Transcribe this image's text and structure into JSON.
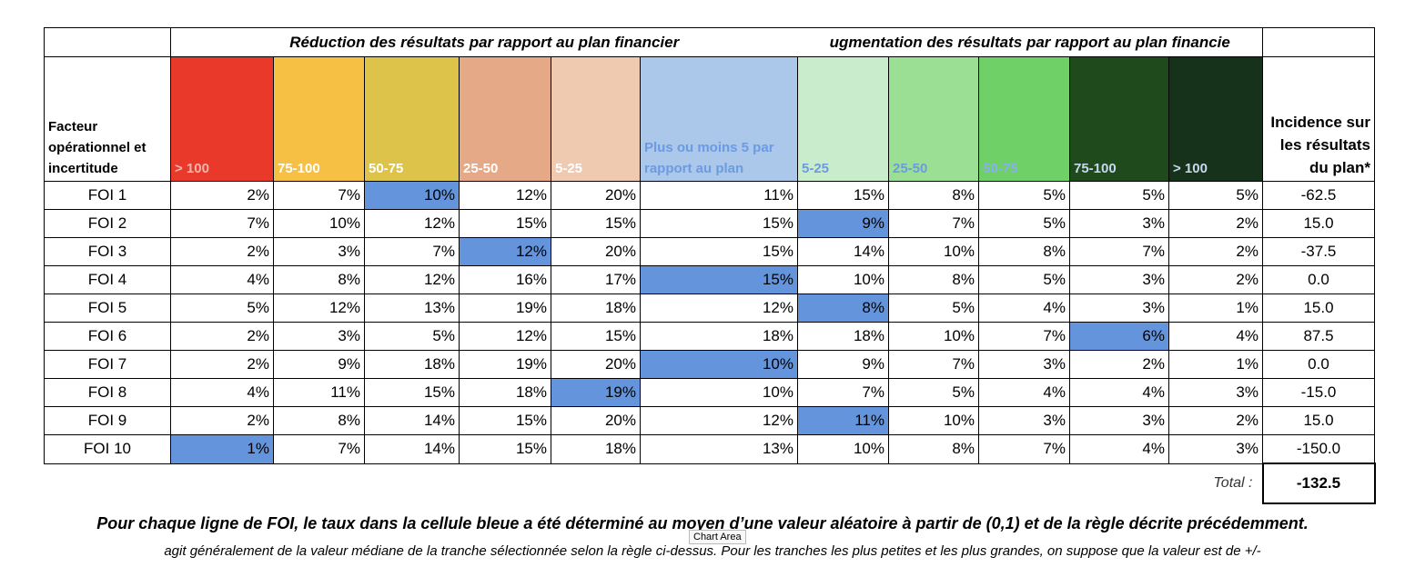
{
  "group_headers": [
    {
      "text": "Réduction des résultats par rapport au plan financier",
      "span": 6
    },
    {
      "text": "ugmentation des résultats par rapport au plan financie",
      "span": 5
    }
  ],
  "row_header_label": "Facteur opérationnel et incertitude",
  "columns": [
    {
      "label": "> 100",
      "bg": "#e8392a",
      "fg": "#f7b4ae"
    },
    {
      "label": "75-100",
      "bg": "#f5c043",
      "fg": "#ffffff"
    },
    {
      "label": "50-75",
      "bg": "#ddc349",
      "fg": "#ffffff"
    },
    {
      "label": "25-50",
      "bg": "#e6a987",
      "fg": "#ffffff"
    },
    {
      "label": "5-25",
      "bg": "#efc9b0",
      "fg": "#ffffff"
    },
    {
      "label": "Plus ou moins 5 par rapport au plan",
      "bg": "#abc7e9",
      "fg": "#6b9be0"
    },
    {
      "label": "5-25",
      "bg": "#c9edcc",
      "fg": "#6b9be0"
    },
    {
      "label": "25-50",
      "bg": "#9bdf94",
      "fg": "#6b9be0"
    },
    {
      "label": "50-75",
      "bg": "#6fd067",
      "fg": "#8ab0ea"
    },
    {
      "label": "75-100",
      "bg": "#1f4a1b",
      "fg": "#c8d8f2"
    },
    {
      "label": "> 100",
      "bg": "#17321a",
      "fg": "#c8d8f2"
    }
  ],
  "impact_header": "Incidence sur les résultats du plan*",
  "highlight_color": "#6495dc",
  "rows": [
    {
      "label": "FOI 1",
      "values": [
        "2%",
        "7%",
        "10%",
        "12%",
        "20%",
        "11%",
        "15%",
        "8%",
        "5%",
        "5%",
        "5%"
      ],
      "highlight": 2,
      "impact": "-62.5"
    },
    {
      "label": "FOI 2",
      "values": [
        "7%",
        "10%",
        "12%",
        "15%",
        "15%",
        "15%",
        "9%",
        "7%",
        "5%",
        "3%",
        "2%"
      ],
      "highlight": 6,
      "impact": "15.0"
    },
    {
      "label": "FOI 3",
      "values": [
        "2%",
        "3%",
        "7%",
        "12%",
        "20%",
        "15%",
        "14%",
        "10%",
        "8%",
        "7%",
        "2%"
      ],
      "highlight": 3,
      "impact": "-37.5"
    },
    {
      "label": "FOI 4",
      "values": [
        "4%",
        "8%",
        "12%",
        "16%",
        "17%",
        "15%",
        "10%",
        "8%",
        "5%",
        "3%",
        "2%"
      ],
      "highlight": 5,
      "impact": "0.0"
    },
    {
      "label": "FOI 5",
      "values": [
        "5%",
        "12%",
        "13%",
        "19%",
        "18%",
        "12%",
        "8%",
        "5%",
        "4%",
        "3%",
        "1%"
      ],
      "highlight": 6,
      "impact": "15.0"
    },
    {
      "label": "FOI 6",
      "values": [
        "2%",
        "3%",
        "5%",
        "12%",
        "15%",
        "18%",
        "18%",
        "10%",
        "7%",
        "6%",
        "4%"
      ],
      "highlight": 9,
      "impact": "87.5"
    },
    {
      "label": "FOI 7",
      "values": [
        "2%",
        "9%",
        "18%",
        "19%",
        "20%",
        "10%",
        "9%",
        "7%",
        "3%",
        "2%",
        "1%"
      ],
      "highlight": 5,
      "impact": "0.0"
    },
    {
      "label": "FOI 8",
      "values": [
        "4%",
        "11%",
        "15%",
        "18%",
        "19%",
        "10%",
        "7%",
        "5%",
        "4%",
        "4%",
        "3%"
      ],
      "highlight": 4,
      "impact": "-15.0"
    },
    {
      "label": "FOI 9",
      "values": [
        "2%",
        "8%",
        "14%",
        "15%",
        "20%",
        "12%",
        "11%",
        "10%",
        "3%",
        "3%",
        "2%"
      ],
      "highlight": 6,
      "impact": "15.0"
    },
    {
      "label": "FOI 10",
      "values": [
        "1%",
        "7%",
        "14%",
        "15%",
        "18%",
        "13%",
        "10%",
        "8%",
        "7%",
        "4%",
        "3%"
      ],
      "highlight": 0,
      "impact": "-150.0"
    }
  ],
  "total_label": "Total :",
  "total_value": "-132.5",
  "footnote": "Pour chaque ligne de FOI, le taux dans la cellule bleue a été déterminé au moyen d’une valeur aléatoire à partir de (0,1) et de la règle décrite précédemment.",
  "note": "agit généralement de la valeur médiane de la tranche sélectionnée selon la règle ci-dessus. Pour les tranches les plus petites et les plus grandes, on suppose que la valeur est de +/-",
  "tooltip": "Chart Area"
}
